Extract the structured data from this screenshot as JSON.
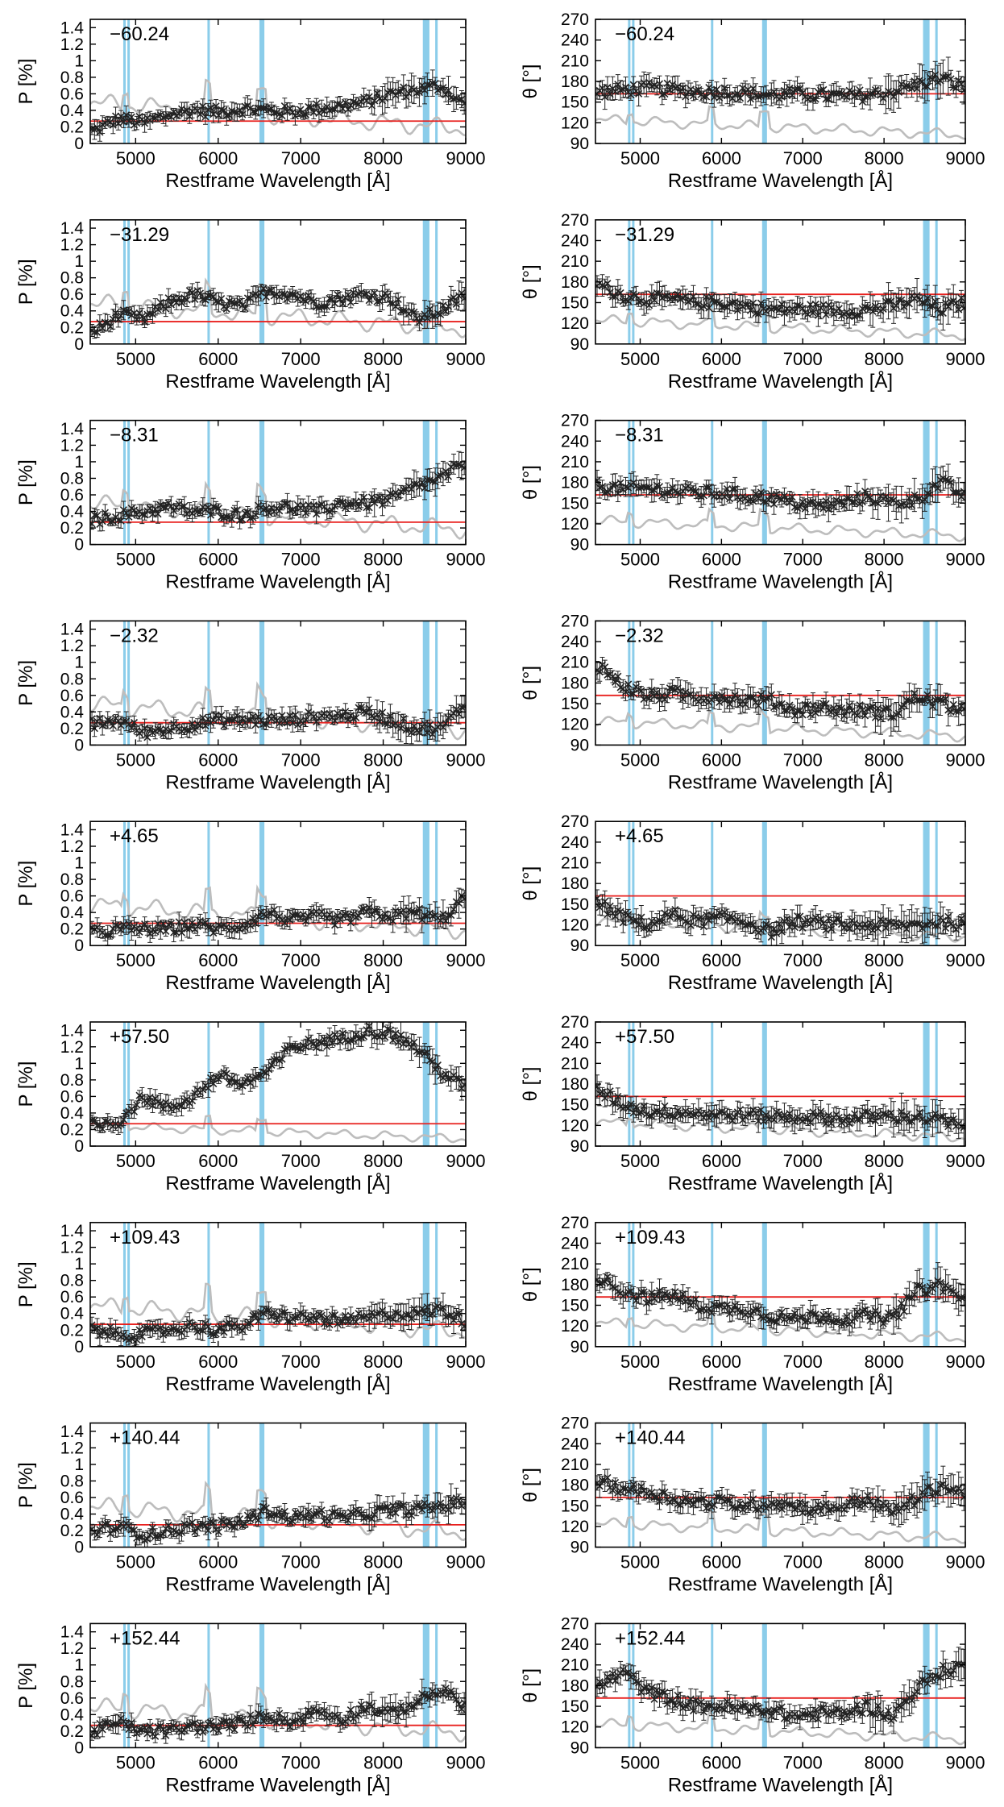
{
  "figure": {
    "xlabel": "Restframe Wavelength [Å]",
    "left_ylabel": "P [%]",
    "right_ylabel": "θ [°]",
    "epochs": [
      "−60.24",
      "−31.29",
      "−8.31",
      "−2.32",
      "+4.65",
      "+57.50",
      "+109.43",
      "+140.44",
      "+152.44"
    ]
  },
  "chart_data": {
    "type": "scatter",
    "description_fields": "Each panel: black error-bar points (observed polarization), grey line (flux spectrum, arbitrary scale), red horizontal line (interstellar polarization level), cyan vertical bands (masked telluric/line regions).",
    "colors": {
      "data": "#222222",
      "flux": "#bdbdbd",
      "isp": "#e8201e",
      "band": "#7ec8e8"
    },
    "x_range": [
      4450,
      9000
    ],
    "x_ticks": [
      5000,
      6000,
      7000,
      8000,
      9000
    ],
    "left": {
      "ylabel": "P [%]",
      "ylim": [
        0,
        1.5
      ],
      "yticks": [
        0,
        0.2,
        0.4,
        0.6,
        0.8,
        1,
        1.2,
        1.4
      ],
      "red_level": 0.27
    },
    "right": {
      "ylabel": "θ [°]",
      "ylim": [
        90,
        270
      ],
      "yticks": [
        90,
        120,
        150,
        180,
        210,
        240,
        270
      ],
      "red_level": 162
    },
    "bands": [
      [
        4850,
        4880
      ],
      [
        4900,
        4920
      ],
      [
        5870,
        5890
      ],
      [
        6500,
        6560
      ],
      [
        8480,
        8560
      ],
      [
        8630,
        8660
      ]
    ],
    "panels": [
      {
        "epoch": "−60.24",
        "P": {
          "x": [
            4500,
            4800,
            5100,
            5400,
            5700,
            6000,
            6300,
            6600,
            6900,
            7200,
            7500,
            7800,
            8100,
            8400,
            8700,
            9000
          ],
          "y": [
            0.15,
            0.3,
            0.25,
            0.35,
            0.4,
            0.38,
            0.42,
            0.4,
            0.38,
            0.42,
            0.45,
            0.5,
            0.6,
            0.65,
            0.7,
            0.45
          ]
        },
        "theta": {
          "x": [
            4500,
            4800,
            5100,
            5400,
            5700,
            6000,
            6300,
            6600,
            6900,
            7200,
            7500,
            7800,
            8100,
            8400,
            8700,
            9000
          ],
          "y": [
            165,
            168,
            170,
            168,
            165,
            165,
            163,
            160,
            162,
            160,
            158,
            160,
            165,
            175,
            185,
            170
          ]
        }
      },
      {
        "epoch": "−31.29",
        "P": {
          "x": [
            4500,
            4800,
            5100,
            5400,
            5700,
            6000,
            6300,
            6600,
            6900,
            7200,
            7500,
            7800,
            8100,
            8400,
            8700,
            9000
          ],
          "y": [
            0.15,
            0.35,
            0.3,
            0.5,
            0.6,
            0.5,
            0.45,
            0.65,
            0.6,
            0.5,
            0.55,
            0.6,
            0.55,
            0.3,
            0.4,
            0.6
          ]
        },
        "theta": {
          "x": [
            4500,
            4800,
            5100,
            5400,
            5700,
            6000,
            6300,
            6600,
            6900,
            7200,
            7500,
            7800,
            8100,
            8400,
            8700,
            9000
          ],
          "y": [
            175,
            160,
            155,
            155,
            150,
            150,
            145,
            140,
            140,
            140,
            138,
            140,
            145,
            155,
            140,
            150
          ]
        }
      },
      {
        "epoch": "−8.31",
        "P": {
          "x": [
            4500,
            4800,
            5100,
            5400,
            5700,
            6000,
            6300,
            6600,
            6900,
            7200,
            7500,
            7800,
            8100,
            8400,
            8700,
            9000
          ],
          "y": [
            0.3,
            0.35,
            0.4,
            0.45,
            0.4,
            0.4,
            0.35,
            0.45,
            0.45,
            0.4,
            0.5,
            0.5,
            0.55,
            0.7,
            0.8,
            1.0
          ]
        },
        "theta": {
          "x": [
            4500,
            4800,
            5100,
            5400,
            5700,
            6000,
            6300,
            6600,
            6900,
            7200,
            7500,
            7800,
            8100,
            8400,
            8700,
            9000
          ],
          "y": [
            175,
            170,
            172,
            168,
            165,
            165,
            160,
            158,
            150,
            145,
            150,
            160,
            150,
            155,
            180,
            160
          ]
        }
      },
      {
        "epoch": "−2.32",
        "P": {
          "x": [
            4500,
            4800,
            5100,
            5400,
            5700,
            6000,
            6300,
            6600,
            6900,
            7200,
            7500,
            7800,
            8100,
            8400,
            8700,
            9000
          ],
          "y": [
            0.25,
            0.3,
            0.15,
            0.2,
            0.25,
            0.3,
            0.3,
            0.3,
            0.3,
            0.35,
            0.35,
            0.4,
            0.3,
            0.2,
            0.2,
            0.5
          ]
        },
        "theta": {
          "x": [
            4500,
            4800,
            5100,
            5400,
            5700,
            6000,
            6300,
            6600,
            6900,
            7200,
            7500,
            7800,
            8100,
            8400,
            8700,
            9000
          ],
          "y": [
            205,
            175,
            160,
            165,
            160,
            160,
            155,
            155,
            140,
            145,
            140,
            140,
            135,
            160,
            150,
            140
          ]
        }
      },
      {
        "epoch": "+4.65",
        "P": {
          "x": [
            4500,
            4800,
            5100,
            5400,
            5700,
            6000,
            6300,
            6600,
            6900,
            7200,
            7500,
            7800,
            8100,
            8400,
            8700,
            9000
          ],
          "y": [
            0.15,
            0.2,
            0.2,
            0.2,
            0.25,
            0.2,
            0.25,
            0.4,
            0.3,
            0.35,
            0.3,
            0.4,
            0.35,
            0.4,
            0.3,
            0.6
          ]
        },
        "theta": {
          "x": [
            4500,
            4800,
            5100,
            5400,
            5700,
            6000,
            6300,
            6600,
            6900,
            7200,
            7500,
            7800,
            8100,
            8400,
            8700,
            9000
          ],
          "y": [
            150,
            130,
            120,
            135,
            125,
            130,
            125,
            110,
            125,
            122,
            120,
            120,
            118,
            120,
            125,
            120
          ]
        }
      },
      {
        "epoch": "+57.50",
        "P": {
          "x": [
            4500,
            4800,
            5100,
            5400,
            5700,
            6000,
            6300,
            6600,
            6900,
            7200,
            7500,
            7800,
            8100,
            8400,
            8700,
            9000
          ],
          "y": [
            0.25,
            0.3,
            0.6,
            0.45,
            0.6,
            0.85,
            0.75,
            0.9,
            1.2,
            1.25,
            1.3,
            1.4,
            1.35,
            1.2,
            0.9,
            0.7
          ]
        },
        "theta": {
          "x": [
            4500,
            4800,
            5100,
            5400,
            5700,
            6000,
            6300,
            6600,
            6900,
            7200,
            7500,
            7800,
            8100,
            8400,
            8700,
            9000
          ],
          "y": [
            170,
            150,
            140,
            140,
            138,
            135,
            135,
            133,
            132,
            132,
            130,
            132,
            133,
            132,
            128,
            115
          ]
        }
      },
      {
        "epoch": "+109.43",
        "P": {
          "x": [
            4500,
            4800,
            5100,
            5400,
            5700,
            6000,
            6300,
            6600,
            6900,
            7200,
            7500,
            7800,
            8100,
            8400,
            8700,
            9000
          ],
          "y": [
            0.2,
            0.15,
            0.15,
            0.2,
            0.25,
            0.2,
            0.25,
            0.4,
            0.35,
            0.35,
            0.3,
            0.35,
            0.4,
            0.4,
            0.45,
            0.3
          ]
        },
        "theta": {
          "x": [
            4500,
            4800,
            5100,
            5400,
            5700,
            6000,
            6300,
            6600,
            6900,
            7200,
            7500,
            7800,
            8100,
            8400,
            8700,
            9000
          ],
          "y": [
            190,
            170,
            160,
            165,
            150,
            145,
            145,
            135,
            130,
            135,
            130,
            135,
            130,
            170,
            180,
            155
          ]
        }
      },
      {
        "epoch": "+140.44",
        "P": {
          "x": [
            4500,
            4800,
            5100,
            5400,
            5700,
            6000,
            6300,
            6600,
            6900,
            7200,
            7500,
            7800,
            8100,
            8400,
            8700,
            9000
          ],
          "y": [
            0.2,
            0.25,
            0.15,
            0.2,
            0.25,
            0.25,
            0.3,
            0.45,
            0.35,
            0.4,
            0.35,
            0.4,
            0.45,
            0.45,
            0.5,
            0.55
          ]
        },
        "theta": {
          "x": [
            4500,
            4800,
            5100,
            5400,
            5700,
            6000,
            6300,
            6600,
            6900,
            7200,
            7500,
            7800,
            8100,
            8400,
            8700,
            9000
          ],
          "y": [
            185,
            175,
            170,
            160,
            155,
            155,
            150,
            155,
            150,
            145,
            150,
            160,
            140,
            160,
            180,
            165
          ]
        }
      },
      {
        "epoch": "+152.44",
        "P": {
          "x": [
            4500,
            4800,
            5100,
            5400,
            5700,
            6000,
            6300,
            6600,
            6900,
            7200,
            7500,
            7800,
            8100,
            8400,
            8700,
            9000
          ],
          "y": [
            0.2,
            0.3,
            0.2,
            0.2,
            0.25,
            0.25,
            0.3,
            0.4,
            0.3,
            0.45,
            0.35,
            0.5,
            0.4,
            0.55,
            0.7,
            0.5
          ]
        },
        "theta": {
          "x": [
            4500,
            4800,
            5100,
            5400,
            5700,
            6000,
            6300,
            6600,
            6900,
            7200,
            7500,
            7800,
            8100,
            8400,
            8700,
            9000
          ],
          "y": [
            180,
            200,
            170,
            160,
            150,
            150,
            145,
            145,
            135,
            140,
            140,
            150,
            135,
            175,
            200,
            210
          ]
        }
      }
    ]
  }
}
